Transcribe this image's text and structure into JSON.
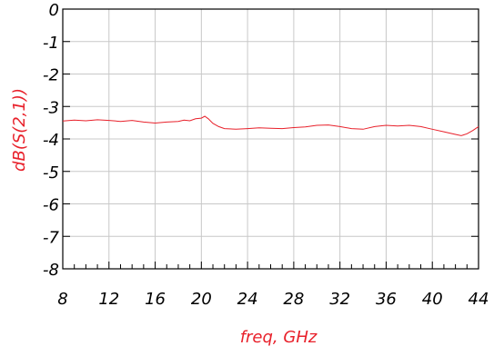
{
  "chart_data": {
    "type": "line",
    "title": "",
    "xlabel": "freq, GHz",
    "ylabel": "dB(S(2,1))",
    "xlim": [
      8,
      44
    ],
    "ylim": [
      -8,
      0
    ],
    "xticks": [
      8,
      12,
      16,
      20,
      24,
      28,
      32,
      36,
      40,
      44
    ],
    "yticks": [
      0,
      -1,
      -2,
      -3,
      -4,
      -5,
      -6,
      -7,
      -8
    ],
    "xtick_labels": [
      "8",
      "12",
      "16",
      "20",
      "24",
      "28",
      "32",
      "36",
      "40",
      "44"
    ],
    "ytick_labels": [
      "0",
      "-1",
      "-2",
      "-3",
      "-4",
      "-5",
      "-6",
      "-7",
      "-8"
    ],
    "grid": true,
    "colors": {
      "series": "#e8202a",
      "ylabel": "#e8202a",
      "xlabel": "#e8202a",
      "grid": "#c8c8c8",
      "axes": "#000000"
    },
    "series": [
      {
        "x": [
          8.0,
          9.0,
          10.0,
          11.0,
          12.0,
          13.0,
          14.0,
          15.0,
          16.0,
          17.0,
          18.0,
          18.5,
          19.0,
          19.5,
          20.0,
          20.3,
          20.6,
          21.0,
          21.5,
          22.0,
          23.0,
          24.0,
          25.0,
          26.0,
          27.0,
          28.0,
          29.0,
          30.0,
          31.0,
          32.0,
          33.0,
          34.0,
          35.0,
          36.0,
          37.0,
          38.0,
          39.0,
          40.0,
          41.0,
          42.0,
          42.5,
          43.0,
          43.5,
          44.0
        ],
        "y": [
          -3.45,
          -3.42,
          -3.44,
          -3.41,
          -3.43,
          -3.46,
          -3.43,
          -3.48,
          -3.51,
          -3.48,
          -3.46,
          -3.42,
          -3.44,
          -3.38,
          -3.36,
          -3.3,
          -3.38,
          -3.52,
          -3.62,
          -3.68,
          -3.7,
          -3.68,
          -3.66,
          -3.67,
          -3.68,
          -3.65,
          -3.63,
          -3.58,
          -3.57,
          -3.62,
          -3.68,
          -3.7,
          -3.62,
          -3.58,
          -3.6,
          -3.58,
          -3.62,
          -3.7,
          -3.78,
          -3.86,
          -3.9,
          -3.84,
          -3.74,
          -3.62
        ]
      }
    ]
  }
}
